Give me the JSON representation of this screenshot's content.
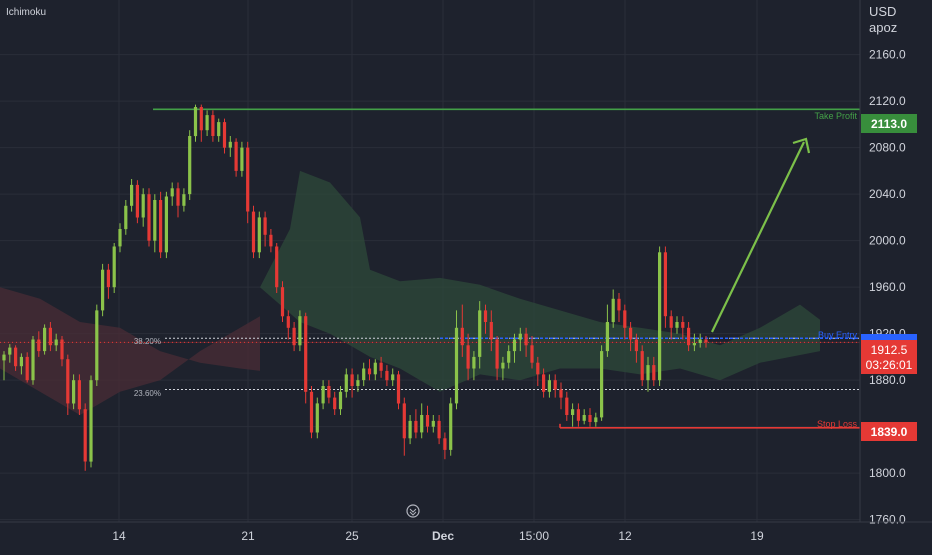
{
  "indicator_label": "Ichimoku",
  "currency": "USD",
  "unit": "apoz",
  "colors": {
    "background": "#1e222d",
    "up": "#8bc34a",
    "down": "#e53935",
    "take_profit": "#43a047",
    "stop_loss": "#e53935",
    "entry": "#2962ff",
    "grid": "#2a2e39",
    "axis_text": "#d1d4dc",
    "kumo_bull": "#2e4a3a",
    "kumo_bear": "#4a2c35"
  },
  "annotations": {
    "take_profit_label": "Take Profit",
    "buy_entry_label": "Buy Entry",
    "stop_loss_label": "Stop Loss",
    "fib_38": "38.20%",
    "fib_23": "23.60%"
  },
  "price_badges": {
    "take_profit": "2113.0",
    "current_price": "1912.5",
    "countdown": "03:26:01",
    "stop_loss": "1839.0"
  },
  "icons": {
    "scroll": "scroll-to-realtime-icon"
  },
  "chart_data": {
    "type": "candlestick",
    "y_axis": {
      "ticks": [
        "2160.0",
        "2120.0",
        "2080.0",
        "2040.0",
        "2000.0",
        "1960.0",
        "1920.0",
        "1880.0",
        "1840.0",
        "1800.0",
        "1760.0"
      ],
      "ylim": [
        1758,
        2207
      ]
    },
    "x_axis": {
      "ticks": [
        "14",
        "21",
        "25",
        "Dec",
        "15:00",
        "12",
        "19"
      ]
    },
    "levels": {
      "take_profit": 2113.0,
      "buy_entry": 1916.0,
      "fib_38": 1916.0,
      "fib_23": 1872.0,
      "stop_loss": 1839.0,
      "current": 1912.5
    },
    "candles": [
      [
        1897,
        1902,
        1880,
        1905
      ],
      [
        1902,
        1908,
        1895,
        1911
      ],
      [
        1908,
        1892,
        1888,
        1910
      ],
      [
        1892,
        1900,
        1885,
        1903
      ],
      [
        1900,
        1880,
        1878,
        1904
      ],
      [
        1880,
        1915,
        1876,
        1918
      ],
      [
        1915,
        1905,
        1900,
        1922
      ],
      [
        1905,
        1925,
        1902,
        1928
      ],
      [
        1925,
        1910,
        1905,
        1930
      ],
      [
        1910,
        1915,
        1905,
        1920
      ],
      [
        1915,
        1898,
        1892,
        1918
      ],
      [
        1898,
        1860,
        1850,
        1902
      ],
      [
        1860,
        1880,
        1855,
        1885
      ],
      [
        1880,
        1855,
        1850,
        1885
      ],
      [
        1855,
        1810,
        1802,
        1860
      ],
      [
        1810,
        1880,
        1805,
        1884
      ],
      [
        1880,
        1940,
        1875,
        1945
      ],
      [
        1940,
        1975,
        1935,
        1980
      ],
      [
        1975,
        1960,
        1950,
        1980
      ],
      [
        1960,
        1995,
        1955,
        1998
      ],
      [
        1995,
        2010,
        1990,
        2015
      ],
      [
        2010,
        2030,
        2005,
        2035
      ],
      [
        2030,
        2048,
        2025,
        2053
      ],
      [
        2048,
        2020,
        2015,
        2052
      ],
      [
        2020,
        2040,
        2012,
        2045
      ],
      [
        2040,
        2000,
        1995,
        2045
      ],
      [
        2000,
        2035,
        1990,
        2040
      ],
      [
        2035,
        1990,
        1985,
        2042
      ],
      [
        1990,
        2038,
        1985,
        2042
      ],
      [
        2038,
        2045,
        2030,
        2050
      ],
      [
        2045,
        2030,
        2020,
        2050
      ],
      [
        2030,
        2040,
        2025,
        2045
      ],
      [
        2040,
        2090,
        2035,
        2095
      ],
      [
        2090,
        2115,
        2085,
        2117
      ],
      [
        2115,
        2095,
        2085,
        2117
      ],
      [
        2095,
        2108,
        2090,
        2112
      ],
      [
        2108,
        2090,
        2085,
        2112
      ],
      [
        2090,
        2102,
        2085,
        2105
      ],
      [
        2102,
        2080,
        2075,
        2105
      ],
      [
        2080,
        2085,
        2072,
        2090
      ],
      [
        2085,
        2060,
        2055,
        2088
      ],
      [
        2060,
        2080,
        2055,
        2085
      ],
      [
        2080,
        2025,
        2015,
        2085
      ],
      [
        2025,
        1990,
        1985,
        2030
      ],
      [
        1990,
        2020,
        1985,
        2025
      ],
      [
        2020,
        2005,
        1995,
        2025
      ],
      [
        2005,
        1995,
        1990,
        2010
      ],
      [
        1995,
        1960,
        1955,
        1998
      ],
      [
        1960,
        1935,
        1930,
        1965
      ],
      [
        1935,
        1925,
        1915,
        1940
      ],
      [
        1925,
        1910,
        1905,
        1930
      ],
      [
        1910,
        1935,
        1905,
        1940
      ],
      [
        1935,
        1870,
        1860,
        1938
      ],
      [
        1870,
        1835,
        1830,
        1875
      ],
      [
        1835,
        1860,
        1830,
        1865
      ],
      [
        1860,
        1875,
        1855,
        1880
      ],
      [
        1875,
        1865,
        1860,
        1880
      ],
      [
        1865,
        1855,
        1850,
        1870
      ],
      [
        1855,
        1870,
        1850,
        1875
      ],
      [
        1870,
        1885,
        1865,
        1890
      ],
      [
        1885,
        1875,
        1865,
        1890
      ],
      [
        1875,
        1880,
        1870,
        1885
      ],
      [
        1880,
        1890,
        1875,
        1895
      ],
      [
        1890,
        1885,
        1880,
        1898
      ],
      [
        1885,
        1895,
        1880,
        1898
      ],
      [
        1895,
        1888,
        1882,
        1900
      ],
      [
        1888,
        1880,
        1875,
        1893
      ],
      [
        1880,
        1885,
        1875,
        1890
      ],
      [
        1885,
        1860,
        1855,
        1888
      ],
      [
        1860,
        1830,
        1815,
        1865
      ],
      [
        1830,
        1845,
        1825,
        1850
      ],
      [
        1845,
        1835,
        1830,
        1855
      ],
      [
        1835,
        1850,
        1830,
        1860
      ],
      [
        1850,
        1840,
        1835,
        1858
      ],
      [
        1840,
        1845,
        1835,
        1850
      ],
      [
        1845,
        1830,
        1825,
        1850
      ],
      [
        1830,
        1820,
        1812,
        1835
      ],
      [
        1820,
        1860,
        1815,
        1865
      ],
      [
        1860,
        1925,
        1855,
        1940
      ],
      [
        1925,
        1910,
        1900,
        1945
      ],
      [
        1910,
        1890,
        1880,
        1920
      ],
      [
        1890,
        1900,
        1880,
        1905
      ],
      [
        1900,
        1940,
        1890,
        1948
      ],
      [
        1940,
        1930,
        1920,
        1945
      ],
      [
        1930,
        1915,
        1905,
        1940
      ],
      [
        1915,
        1890,
        1880,
        1918
      ],
      [
        1890,
        1895,
        1880,
        1900
      ],
      [
        1895,
        1905,
        1890,
        1910
      ],
      [
        1905,
        1915,
        1895,
        1920
      ],
      [
        1915,
        1920,
        1905,
        1925
      ],
      [
        1920,
        1910,
        1900,
        1925
      ],
      [
        1910,
        1895,
        1890,
        1918
      ],
      [
        1895,
        1885,
        1875,
        1900
      ],
      [
        1885,
        1870,
        1865,
        1890
      ],
      [
        1870,
        1880,
        1865,
        1885
      ],
      [
        1880,
        1872,
        1865,
        1885
      ],
      [
        1872,
        1865,
        1855,
        1878
      ],
      [
        1865,
        1850,
        1845,
        1870
      ],
      [
        1850,
        1855,
        1840,
        1860
      ],
      [
        1855,
        1845,
        1840,
        1860
      ],
      [
        1845,
        1850,
        1842,
        1855
      ],
      [
        1850,
        1844,
        1840,
        1856
      ],
      [
        1844,
        1848,
        1840,
        1852
      ],
      [
        1848,
        1905,
        1845,
        1910
      ],
      [
        1905,
        1930,
        1900,
        1945
      ],
      [
        1930,
        1950,
        1925,
        1958
      ],
      [
        1950,
        1940,
        1930,
        1955
      ],
      [
        1940,
        1925,
        1915,
        1945
      ],
      [
        1925,
        1915,
        1905,
        1930
      ],
      [
        1915,
        1905,
        1895,
        1920
      ],
      [
        1905,
        1880,
        1875,
        1910
      ],
      [
        1880,
        1893,
        1870,
        1900
      ],
      [
        1893,
        1880,
        1875,
        1900
      ],
      [
        1880,
        1990,
        1875,
        1995
      ],
      [
        1990,
        1935,
        1925,
        1995
      ],
      [
        1935,
        1925,
        1915,
        1940
      ],
      [
        1925,
        1930,
        1920,
        1935
      ],
      [
        1930,
        1925,
        1915,
        1935
      ],
      [
        1925,
        1910,
        1905,
        1930
      ],
      [
        1910,
        1912,
        1905,
        1920
      ],
      [
        1912,
        1915,
        1908,
        1920
      ],
      [
        1915,
        1912.5,
        1908,
        1918
      ]
    ]
  }
}
